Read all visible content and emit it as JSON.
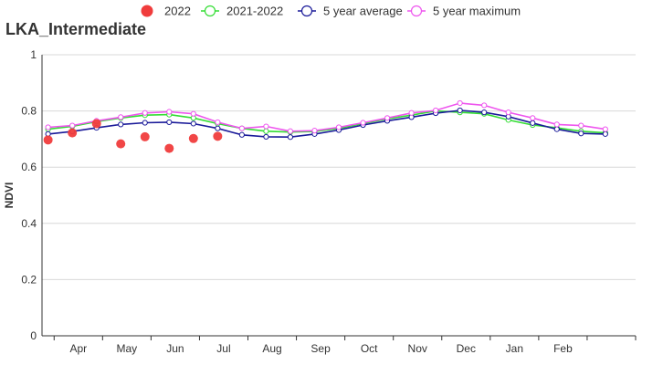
{
  "chart_data": {
    "type": "line",
    "title": "LKA_Intermediate",
    "xlabel": "",
    "ylabel": "NDVI",
    "ylim": [
      0,
      1
    ],
    "yticks": [
      0,
      0.2,
      0.4,
      0.6,
      0.8,
      1
    ],
    "ytick_labels": [
      "0",
      "0.2",
      "0.4",
      "0.6",
      "0.8",
      "1"
    ],
    "x_periods": 24,
    "month_labels": [
      "Apr",
      "May",
      "Jun",
      "Jul",
      "Aug",
      "Sep",
      "Oct",
      "Nov",
      "Dec",
      "Jan",
      "Feb"
    ],
    "grid": "horizontal",
    "legend_position": "top",
    "series": [
      {
        "name": "2022",
        "style": "dot",
        "color": "#f03c3c",
        "x": [
          0,
          1,
          2,
          3,
          4,
          5,
          6,
          7
        ],
        "values": [
          0.697,
          0.722,
          0.755,
          0.683,
          0.708,
          0.667,
          0.702,
          0.71
        ]
      },
      {
        "name": "2021-2022",
        "style": "line",
        "color": "#33dd33",
        "values": [
          0.735,
          0.745,
          0.762,
          0.775,
          0.785,
          0.787,
          0.775,
          0.755,
          0.738,
          0.728,
          0.725,
          0.727,
          0.738,
          0.755,
          0.772,
          0.785,
          0.8,
          0.795,
          0.79,
          0.768,
          0.75,
          0.74,
          0.728,
          0.722
        ]
      },
      {
        "name": "5 year average",
        "style": "line",
        "color": "#1a1a99",
        "values": [
          0.718,
          0.727,
          0.74,
          0.752,
          0.758,
          0.76,
          0.755,
          0.738,
          0.715,
          0.708,
          0.707,
          0.718,
          0.732,
          0.75,
          0.765,
          0.778,
          0.792,
          0.802,
          0.795,
          0.78,
          0.757,
          0.735,
          0.72,
          0.718
        ]
      },
      {
        "name": "5 year maximum",
        "style": "line",
        "color": "#ee55ee",
        "values": [
          0.742,
          0.748,
          0.765,
          0.778,
          0.793,
          0.797,
          0.79,
          0.76,
          0.738,
          0.745,
          0.728,
          0.73,
          0.742,
          0.758,
          0.775,
          0.793,
          0.802,
          0.828,
          0.82,
          0.795,
          0.775,
          0.752,
          0.748,
          0.735
        ]
      }
    ]
  }
}
